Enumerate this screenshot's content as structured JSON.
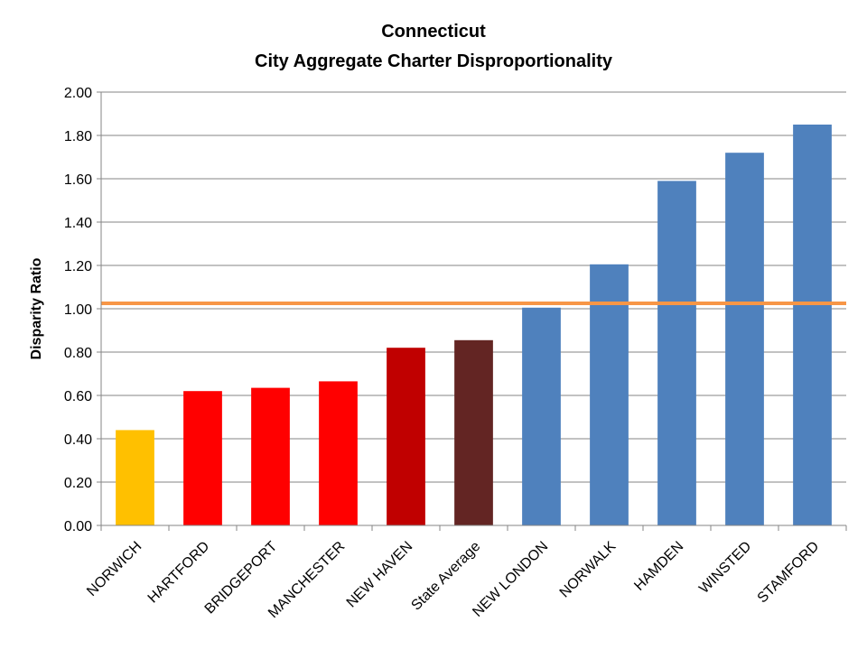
{
  "chart_data": {
    "type": "bar",
    "title_lines": [
      "Connecticut",
      "City Aggregate Charter Disproportionality"
    ],
    "xlabel": "",
    "ylabel": "Disparity  Ratio",
    "ylim": [
      0,
      2.0
    ],
    "ytick_step": 0.2,
    "yticks": [
      "0.00",
      "0.20",
      "0.40",
      "0.60",
      "0.80",
      "1.00",
      "1.20",
      "1.40",
      "1.60",
      "1.80",
      "2.00"
    ],
    "grid": true,
    "categories": [
      "NORWICH",
      "HARTFORD",
      "BRIDGEPORT",
      "MANCHESTER",
      "NEW HAVEN",
      "State Average",
      "NEW LONDON",
      "NORWALK",
      "HAMDEN",
      "WINSTED",
      "STAMFORD"
    ],
    "values": [
      0.44,
      0.62,
      0.635,
      0.665,
      0.82,
      0.855,
      1.005,
      1.205,
      1.59,
      1.72,
      1.85
    ],
    "bar_colors": [
      "#FFC000",
      "#FF0000",
      "#FF0000",
      "#FF0000",
      "#C00000",
      "#632523",
      "#4F81BD",
      "#4F81BD",
      "#4F81BD",
      "#4F81BD",
      "#4F81BD"
    ],
    "reference_line": {
      "value": 1.025,
      "color": "#F79646"
    }
  }
}
